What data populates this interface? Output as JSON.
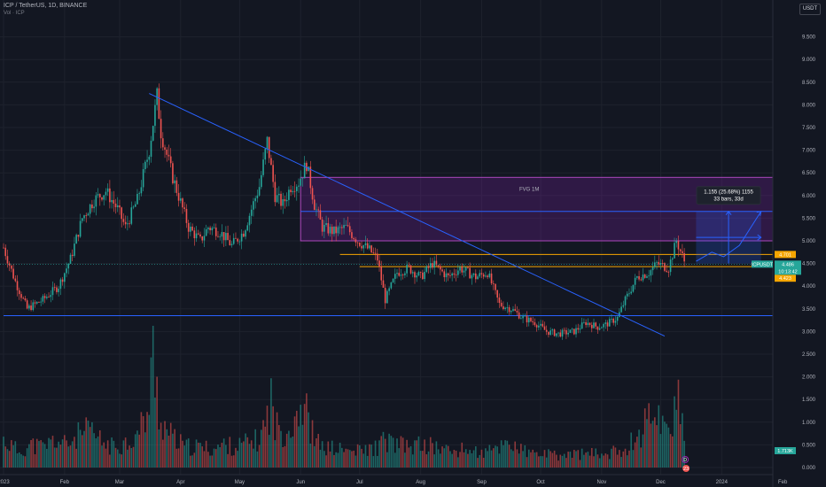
{
  "header": {
    "symbol": "ICP / TetherUS, 1D, BINANCE",
    "volume_label": "Vol · ICP",
    "currency": "USDT"
  },
  "chart_data": {
    "type": "candlestick",
    "price_axis": {
      "min": 0,
      "max": 10,
      "ticks": [
        "9.500",
        "9.000",
        "8.500",
        "8.000",
        "7.500",
        "7.000",
        "6.500",
        "6.000",
        "5.500",
        "5.000",
        "4.500",
        "4.000",
        "3.500",
        "3.000",
        "2.500",
        "2.000",
        "1.500",
        "1.000",
        "0.500",
        "0.000"
      ],
      "tick_values": [
        9.5,
        9.0,
        8.5,
        8.0,
        7.5,
        7.0,
        6.5,
        6.0,
        5.5,
        5.0,
        4.5,
        4.0,
        3.5,
        3.0,
        2.5,
        2.0,
        1.5,
        1.0,
        0.5,
        0.0
      ]
    },
    "time_axis": {
      "labels": [
        "2023",
        "Feb",
        "Mar",
        "Apr",
        "May",
        "Jun",
        "Jul",
        "Aug",
        "Sep",
        "Oct",
        "Nov",
        "Dec",
        "2024",
        "Feb"
      ],
      "day_index": [
        0,
        31,
        59,
        90,
        120,
        151,
        181,
        212,
        243,
        273,
        304,
        334,
        365,
        396
      ]
    },
    "series": [
      {
        "keypoints": [
          [
            0,
            4.85
          ],
          [
            6,
            4.1
          ],
          [
            12,
            3.5
          ],
          [
            20,
            3.7
          ],
          [
            28,
            4.0
          ],
          [
            34,
            4.6
          ],
          [
            40,
            5.5
          ],
          [
            46,
            5.9
          ],
          [
            52,
            6.1
          ],
          [
            58,
            5.7
          ],
          [
            62,
            5.3
          ],
          [
            68,
            5.9
          ],
          [
            74,
            7.0
          ],
          [
            78,
            8.2
          ],
          [
            80,
            7.4
          ],
          [
            86,
            6.4
          ],
          [
            94,
            5.3
          ],
          [
            100,
            5.0
          ],
          [
            104,
            5.3
          ],
          [
            110,
            5.2
          ],
          [
            116,
            4.9
          ],
          [
            122,
            5.2
          ],
          [
            126,
            5.7
          ],
          [
            130,
            6.2
          ],
          [
            134,
            7.2
          ],
          [
            138,
            6.0
          ],
          [
            142,
            5.8
          ],
          [
            146,
            6.2
          ],
          [
            150,
            6.3
          ],
          [
            154,
            6.7
          ],
          [
            158,
            5.8
          ],
          [
            162,
            5.3
          ],
          [
            168,
            5.2
          ],
          [
            174,
            5.3
          ],
          [
            180,
            5.0
          ],
          [
            186,
            4.8
          ],
          [
            190,
            4.6
          ],
          [
            194,
            3.7
          ],
          [
            200,
            4.3
          ],
          [
            206,
            4.4
          ],
          [
            212,
            4.2
          ],
          [
            218,
            4.5
          ],
          [
            226,
            4.2
          ],
          [
            232,
            4.4
          ],
          [
            240,
            4.2
          ],
          [
            246,
            4.3
          ],
          [
            252,
            3.6
          ],
          [
            258,
            3.5
          ],
          [
            264,
            3.3
          ],
          [
            270,
            3.2
          ],
          [
            276,
            3.0
          ],
          [
            282,
            2.95
          ],
          [
            290,
            3.0
          ],
          [
            296,
            3.2
          ],
          [
            302,
            3.1
          ],
          [
            306,
            3.15
          ],
          [
            312,
            3.3
          ],
          [
            316,
            3.7
          ],
          [
            322,
            4.2
          ],
          [
            328,
            4.3
          ],
          [
            332,
            4.5
          ],
          [
            338,
            4.4
          ],
          [
            342,
            5.0
          ],
          [
            346,
            4.55
          ]
        ]
      }
    ],
    "volume_keypoints": [
      [
        0,
        0.6
      ],
      [
        8,
        0.35
      ],
      [
        14,
        0.5
      ],
      [
        20,
        0.45
      ],
      [
        26,
        0.6
      ],
      [
        32,
        0.5
      ],
      [
        38,
        0.7
      ],
      [
        44,
        0.8
      ],
      [
        50,
        0.55
      ],
      [
        56,
        0.45
      ],
      [
        62,
        0.55
      ],
      [
        68,
        0.7
      ],
      [
        74,
        1.3
      ],
      [
        76,
        2.45
      ],
      [
        78,
        1.7
      ],
      [
        80,
        1.0
      ],
      [
        86,
        0.65
      ],
      [
        92,
        0.45
      ],
      [
        100,
        0.45
      ],
      [
        106,
        0.4
      ],
      [
        112,
        0.5
      ],
      [
        118,
        0.45
      ],
      [
        124,
        0.55
      ],
      [
        130,
        0.6
      ],
      [
        134,
        1.1
      ],
      [
        136,
        1.5
      ],
      [
        138,
        0.9
      ],
      [
        142,
        0.8
      ],
      [
        146,
        0.9
      ],
      [
        150,
        1.4
      ],
      [
        154,
        1.2
      ],
      [
        158,
        0.6
      ],
      [
        162,
        0.45
      ],
      [
        170,
        0.4
      ],
      [
        178,
        0.35
      ],
      [
        186,
        0.4
      ],
      [
        190,
        0.45
      ],
      [
        194,
        0.6
      ],
      [
        200,
        0.5
      ],
      [
        206,
        0.45
      ],
      [
        212,
        0.5
      ],
      [
        220,
        0.45
      ],
      [
        228,
        0.35
      ],
      [
        236,
        0.4
      ],
      [
        244,
        0.3
      ],
      [
        252,
        0.45
      ],
      [
        256,
        0.6
      ],
      [
        262,
        0.4
      ],
      [
        268,
        0.3
      ],
      [
        274,
        0.3
      ],
      [
        282,
        0.25
      ],
      [
        290,
        0.3
      ],
      [
        298,
        0.3
      ],
      [
        306,
        0.3
      ],
      [
        312,
        0.35
      ],
      [
        318,
        0.5
      ],
      [
        324,
        0.8
      ],
      [
        328,
        1.1
      ],
      [
        332,
        1.4
      ],
      [
        336,
        0.8
      ],
      [
        340,
        1.1
      ],
      [
        342,
        1.9
      ],
      [
        344,
        1.0
      ],
      [
        346,
        0.7
      ]
    ],
    "last_price": {
      "label": "ICPUSDT",
      "value": "4.486",
      "countdown": "10:13:42",
      "volume": "1.713K"
    },
    "level_tags": [
      "4.701",
      "4.423"
    ],
    "zone": {
      "label": "FVG 1M",
      "top": 6.4,
      "mid": 5.65,
      "bottom": 5.0,
      "start_day": 151,
      "end_day": 396
    },
    "horizontal_levels": [
      {
        "value": 4.7,
        "start_day": 171,
        "color": "#f7a600"
      },
      {
        "value": 4.43,
        "start_day": 181,
        "color": "#f7a600"
      },
      {
        "value": 3.35,
        "start_day": 0,
        "color": "#2962ff"
      }
    ],
    "trendline": {
      "points": [
        [
          74,
          8.25
        ],
        [
          336,
          2.9
        ]
      ],
      "color": "#2962ff"
    },
    "measure": {
      "text": "1.155 (25.68%) 1155",
      "subtext": "33 bars, 33d",
      "start_day": 352,
      "end_day": 385,
      "low": 4.5,
      "high": 5.65,
      "color": "#2962ff"
    },
    "projection": {
      "points": [
        [
          352,
          4.55
        ],
        [
          360,
          4.75
        ],
        [
          366,
          4.65
        ],
        [
          374,
          4.9
        ],
        [
          385,
          5.65
        ]
      ]
    },
    "colors": {
      "up": "#26a69a",
      "down": "#ef5350",
      "zone_fill": "#7b1fa2",
      "zone_border": "#ab47bc",
      "grid": "#1e222d"
    },
    "annotations": [
      {
        "type": "circle-marker",
        "symbol": "D",
        "color": "#9c27b0"
      },
      {
        "type": "circle-marker",
        "symbol": "23",
        "color": "#ef5350"
      }
    ]
  }
}
